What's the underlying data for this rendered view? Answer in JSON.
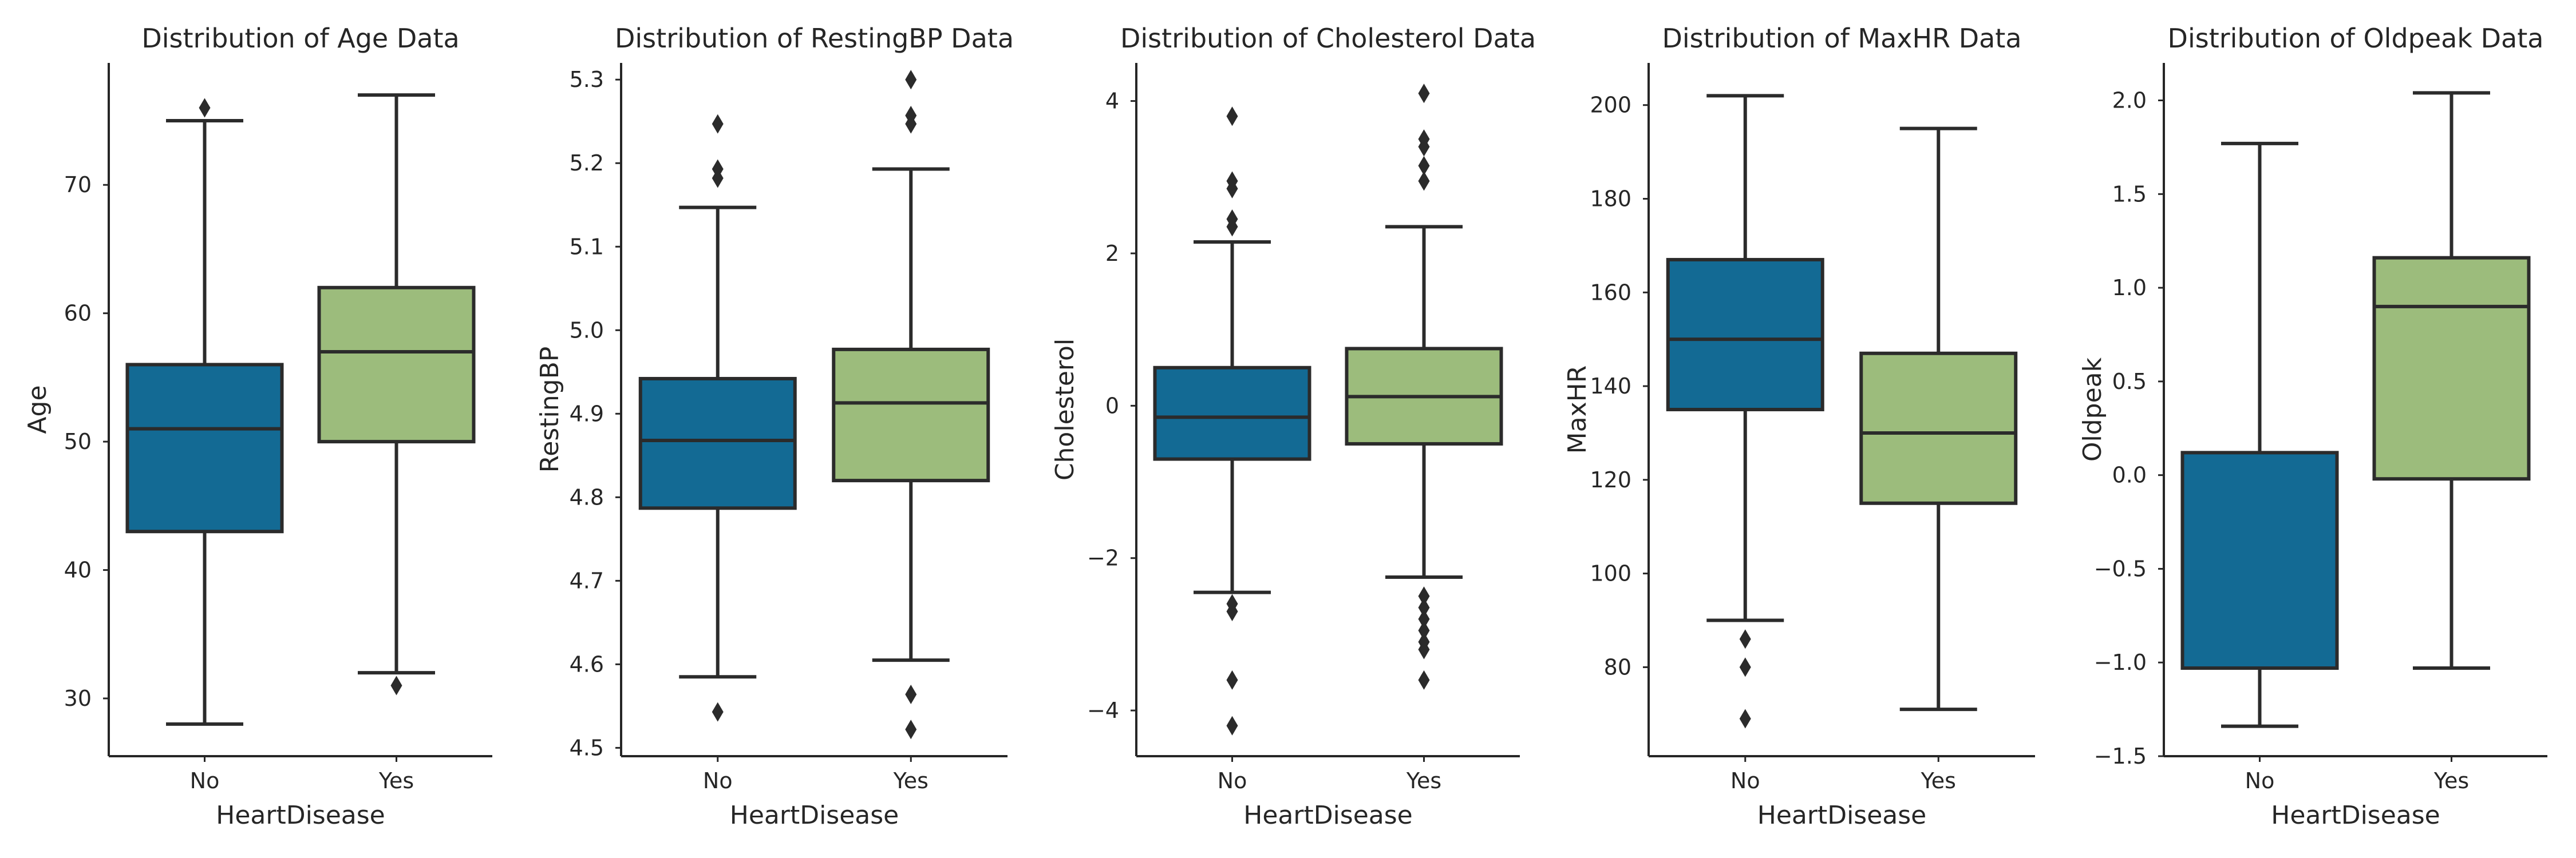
{
  "colors": {
    "no": "#136A94",
    "yes": "#9CBC7C",
    "line": "#2b2b2b",
    "axis": "#262626"
  },
  "chart_data": [
    {
      "type": "box",
      "title": "Distribution of Age Data",
      "xlabel": "HeartDisease",
      "ylabel": "Age",
      "categories": [
        "No",
        "Yes"
      ],
      "ylim": [
        25.5,
        79.5
      ],
      "yticks": [
        30,
        40,
        50,
        60,
        70
      ],
      "ytick_labels": [
        "30",
        "40",
        "50",
        "60",
        "70"
      ],
      "boxes": [
        {
          "group": "No",
          "whisker_low": 28,
          "q1": 43,
          "median": 51,
          "q3": 56,
          "whisker_high": 75,
          "outliers": [
            76
          ]
        },
        {
          "group": "Yes",
          "whisker_low": 32,
          "q1": 50,
          "median": 57,
          "q3": 62,
          "whisker_high": 77,
          "outliers": [
            31
          ]
        }
      ]
    },
    {
      "type": "box",
      "title": "Distribution of RestingBP Data",
      "xlabel": "HeartDisease",
      "ylabel": "RestingBP",
      "categories": [
        "No",
        "Yes"
      ],
      "ylim": [
        4.49,
        5.32
      ],
      "yticks": [
        4.5,
        4.6,
        4.7,
        4.8,
        4.9,
        5.0,
        5.1,
        5.2,
        5.3
      ],
      "ytick_labels": [
        "4.5",
        "4.6",
        "4.7",
        "4.8",
        "4.9",
        "5.0",
        "5.1",
        "5.2",
        "5.3"
      ],
      "boxes": [
        {
          "group": "No",
          "whisker_low": 4.585,
          "q1": 4.787,
          "median": 4.868,
          "q3": 4.942,
          "whisker_high": 5.147,
          "outliers": [
            4.543,
            5.182,
            5.193,
            5.247
          ]
        },
        {
          "group": "Yes",
          "whisker_low": 4.605,
          "q1": 4.82,
          "median": 4.913,
          "q3": 4.977,
          "whisker_high": 5.193,
          "outliers": [
            4.522,
            4.564,
            5.247,
            5.257,
            5.3
          ]
        }
      ]
    },
    {
      "type": "box",
      "title": "Distribution of Cholesterol Data",
      "xlabel": "HeartDisease",
      "ylabel": "Cholesterol",
      "categories": [
        "No",
        "Yes"
      ],
      "ylim": [
        -4.6,
        4.5
      ],
      "yticks": [
        -4,
        -2,
        0,
        2,
        4
      ],
      "ytick_labels": [
        "−4",
        "−2",
        "0",
        "2",
        "4"
      ],
      "boxes": [
        {
          "group": "No",
          "whisker_low": -2.45,
          "q1": -0.7,
          "median": -0.15,
          "q3": 0.5,
          "whisker_high": 2.15,
          "outliers": [
            -4.2,
            -3.6,
            -2.7,
            -2.6,
            2.35,
            2.45,
            2.85,
            2.95,
            3.8
          ]
        },
        {
          "group": "Yes",
          "whisker_low": -2.25,
          "q1": -0.5,
          "median": 0.12,
          "q3": 0.75,
          "whisker_high": 2.35,
          "outliers": [
            -3.6,
            -3.2,
            -3.1,
            -2.95,
            -2.8,
            -2.65,
            -2.5,
            2.95,
            3.15,
            3.4,
            3.5,
            4.1
          ]
        }
      ]
    },
    {
      "type": "box",
      "title": "Distribution of MaxHR Data",
      "xlabel": "HeartDisease",
      "ylabel": "MaxHR",
      "categories": [
        "No",
        "Yes"
      ],
      "ylim": [
        61,
        209
      ],
      "yticks": [
        80,
        100,
        120,
        140,
        160,
        180,
        200
      ],
      "ytick_labels": [
        "80",
        "100",
        "120",
        "140",
        "160",
        "180",
        "200"
      ],
      "boxes": [
        {
          "group": "No",
          "whisker_low": 90,
          "q1": 135,
          "median": 150,
          "q3": 167,
          "whisker_high": 202,
          "outliers": [
            69,
            80,
            86
          ]
        },
        {
          "group": "Yes",
          "whisker_low": 71,
          "q1": 115,
          "median": 130,
          "q3": 147,
          "whisker_high": 195,
          "outliers": []
        }
      ]
    },
    {
      "type": "box",
      "title": "Distribution of Oldpeak Data",
      "xlabel": "HeartDisease",
      "ylabel": "Oldpeak",
      "categories": [
        "No",
        "Yes"
      ],
      "ylim": [
        -1.5,
        2.2
      ],
      "yticks": [
        -1.5,
        -1.0,
        -0.5,
        0.0,
        0.5,
        1.0,
        1.5,
        2.0
      ],
      "ytick_labels": [
        "−1.5",
        "−1.0",
        "−0.5",
        "0.0",
        "0.5",
        "1.0",
        "1.5",
        "2.0"
      ],
      "boxes": [
        {
          "group": "No",
          "whisker_low": -1.34,
          "q1": -1.03,
          "median": -1.03,
          "q3": 0.12,
          "whisker_high": 1.77,
          "outliers": []
        },
        {
          "group": "Yes",
          "whisker_low": -1.03,
          "q1": -0.02,
          "median": 0.9,
          "q3": 1.16,
          "whisker_high": 2.04,
          "outliers": []
        }
      ]
    }
  ]
}
